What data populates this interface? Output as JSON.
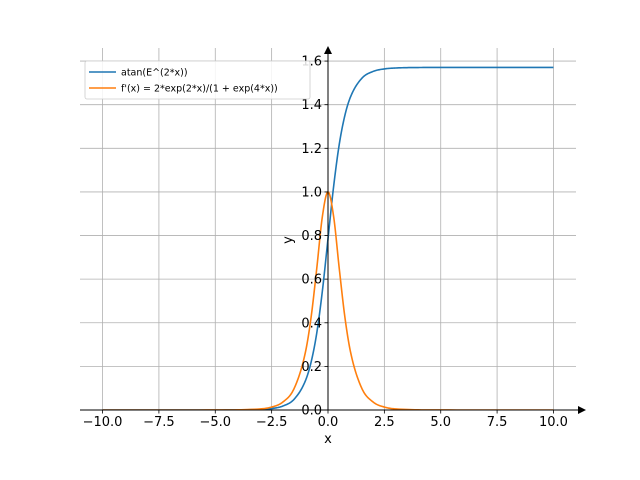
{
  "chart_data": {
    "type": "line",
    "title": "",
    "xlabel": "x",
    "ylabel": "y",
    "xlim": [
      -11.0,
      11.0
    ],
    "ylim": [
      0.0,
      1.66
    ],
    "xticks": [
      -10.0,
      -7.5,
      -5.0,
      -2.5,
      0.0,
      2.5,
      5.0,
      7.5,
      10.0
    ],
    "xtick_labels": [
      "−10.0",
      "−7.5",
      "−5.0",
      "−2.5",
      "0.0",
      "2.5",
      "5.0",
      "7.5",
      "10.0"
    ],
    "yticks": [
      0.0,
      0.2,
      0.4,
      0.6,
      0.8,
      1.0,
      1.2,
      1.4,
      1.6
    ],
    "ytick_labels": [
      "0.0",
      "0.2",
      "0.4",
      "0.6",
      "0.8",
      "1.0",
      "1.2",
      "1.4",
      "1.6"
    ],
    "grid": true,
    "legend_position": "top-left",
    "series": [
      {
        "name": "atan(E^(2*x))",
        "color": "#1f77b4",
        "x": [
          -10,
          -5,
          -3,
          -2.5,
          -2,
          -1.5,
          -1,
          -0.75,
          -0.5,
          -0.25,
          0,
          0.25,
          0.5,
          0.75,
          1,
          1.5,
          2,
          2.5,
          3,
          4,
          5,
          10
        ],
        "y": [
          0.0,
          4.54e-05,
          0.00248,
          0.00674,
          0.0183,
          0.0497,
          0.1347,
          0.2193,
          0.3521,
          0.5454,
          0.7854,
          1.0254,
          1.2187,
          1.3515,
          1.4361,
          1.5211,
          1.5525,
          1.5641,
          1.5683,
          1.5705,
          1.5708,
          1.5708
        ]
      },
      {
        "name": "f'(x) = 2*exp(2*x)/(1 + exp(4*x))",
        "color": "#ff7f0e",
        "x": [
          -10,
          -5,
          -3,
          -2.5,
          -2,
          -1.5,
          -1,
          -0.75,
          -0.5,
          -0.25,
          0,
          0.25,
          0.5,
          0.75,
          1,
          1.5,
          2,
          2.5,
          3,
          5,
          10
        ],
        "y": [
          0.0,
          9.08e-05,
          0.00496,
          0.01348,
          0.03662,
          0.0993,
          0.2658,
          0.4251,
          0.6481,
          0.8868,
          1.0,
          0.8868,
          0.6481,
          0.4251,
          0.2658,
          0.0993,
          0.03662,
          0.01348,
          0.00496,
          9.08e-05,
          0.0
        ]
      }
    ]
  }
}
